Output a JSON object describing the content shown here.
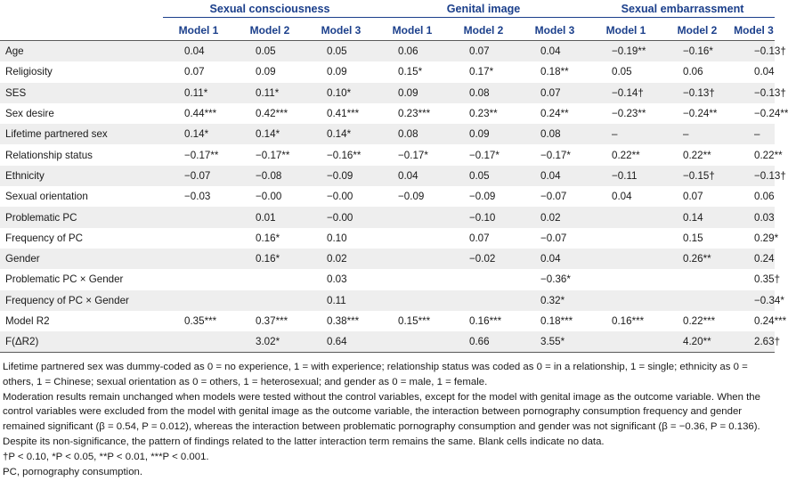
{
  "group_headers": [
    "Sexual consciousness",
    "Genital image",
    "Sexual embarrassment"
  ],
  "model_headers": [
    "Model 1",
    "Model 2",
    "Model 3",
    "Model 1",
    "Model 2",
    "Model 3",
    "Model 1",
    "Model 2",
    "Model 3"
  ],
  "rows": [
    {
      "label": "Age",
      "cells": [
        "0.04",
        "0.05",
        "0.05",
        "0.06",
        "0.07",
        "0.04",
        "−0.19**",
        "−0.16*",
        "−0.13†"
      ]
    },
    {
      "label": "Religiosity",
      "cells": [
        "0.07",
        "0.09",
        "0.09",
        "0.15*",
        "0.17*",
        "0.18**",
        "0.05",
        "0.06",
        "0.04"
      ]
    },
    {
      "label": "SES",
      "cells": [
        "0.11*",
        "0.11*",
        "0.10*",
        "0.09",
        "0.08",
        "0.07",
        "−0.14†",
        "−0.13†",
        "−0.13†"
      ]
    },
    {
      "label": "Sex desire",
      "cells": [
        "0.44***",
        "0.42***",
        "0.41***",
        "0.23***",
        "0.23**",
        "0.24**",
        "−0.23**",
        "−0.24**",
        "−0.24**"
      ]
    },
    {
      "label": "Lifetime partnered sex",
      "cells": [
        "0.14*",
        "0.14*",
        "0.14*",
        "0.08",
        "0.09",
        "0.08",
        "–",
        "–",
        "–"
      ]
    },
    {
      "label": "Relationship status",
      "cells": [
        "−0.17**",
        "−0.17**",
        "−0.16**",
        "−0.17*",
        "−0.17*",
        "−0.17*",
        "0.22**",
        "0.22**",
        "0.22**"
      ]
    },
    {
      "label": "Ethnicity",
      "cells": [
        "−0.07",
        "−0.08",
        "−0.09",
        "0.04",
        "0.05",
        "0.04",
        "−0.11",
        "−0.15†",
        "−0.13†"
      ]
    },
    {
      "label": "Sexual orientation",
      "cells": [
        "−0.03",
        "−0.00",
        "−0.00",
        "−0.09",
        "−0.09",
        "−0.07",
        "0.04",
        "0.07",
        "0.06"
      ]
    },
    {
      "label": "Problematic PC",
      "cells": [
        "",
        "0.01",
        "−0.00",
        "",
        "−0.10",
        "0.02",
        "",
        "0.14",
        "0.03"
      ]
    },
    {
      "label": "Frequency of PC",
      "cells": [
        "",
        "0.16*",
        "0.10",
        "",
        "0.07",
        "−0.07",
        "",
        "0.15",
        "0.29*"
      ]
    },
    {
      "label": "Gender",
      "cells": [
        "",
        "0.16*",
        "0.02",
        "",
        "−0.02",
        "0.04",
        "",
        "0.26**",
        "0.24"
      ]
    },
    {
      "label": "Problematic PC × Gender",
      "cells": [
        "",
        "",
        "0.03",
        "",
        "",
        "−0.36*",
        "",
        "",
        "0.35†"
      ]
    },
    {
      "label": "Frequency of PC × Gender",
      "cells": [
        "",
        "",
        "0.11",
        "",
        "",
        "0.32*",
        "",
        "",
        "−0.34*"
      ]
    },
    {
      "label": "Model R2",
      "cells": [
        "0.35***",
        "0.37***",
        "0.38***",
        "0.15***",
        "0.16***",
        "0.18***",
        "0.16***",
        "0.22***",
        "0.24***"
      ]
    },
    {
      "label": "F(ΔR2)",
      "cells": [
        "",
        "3.02*",
        "0.64",
        "",
        "0.66",
        "3.55*",
        "",
        "4.20**",
        "2.63†"
      ]
    }
  ],
  "notes": [
    "Lifetime partnered sex was dummy-coded as 0 = no experience, 1 = with experience; relationship status was coded as 0 = in a relationship, 1 = single; ethnicity as 0 = others, 1 = Chinese; sexual orientation as 0 = others, 1 = heterosexual; and gender as 0 = male, 1 = female.",
    "Moderation results remain unchanged when models were tested without the control variables, except for the model with genital image as the outcome variable. When the control variables were excluded from the model with genital image as the outcome variable, the interaction between pornography consumption frequency and gender remained significant (β = 0.54, P = 0.012), whereas the interaction between problematic pornography consumption and gender was not significant (β = −0.36, P = 0.136). Despite its non-significance, the pattern of findings related to the latter interaction term remains the same. Blank cells indicate no data.",
    "†P < 0.10, *P < 0.05, **P < 0.01, ***P < 0.001.",
    "PC, pornography consumption."
  ]
}
